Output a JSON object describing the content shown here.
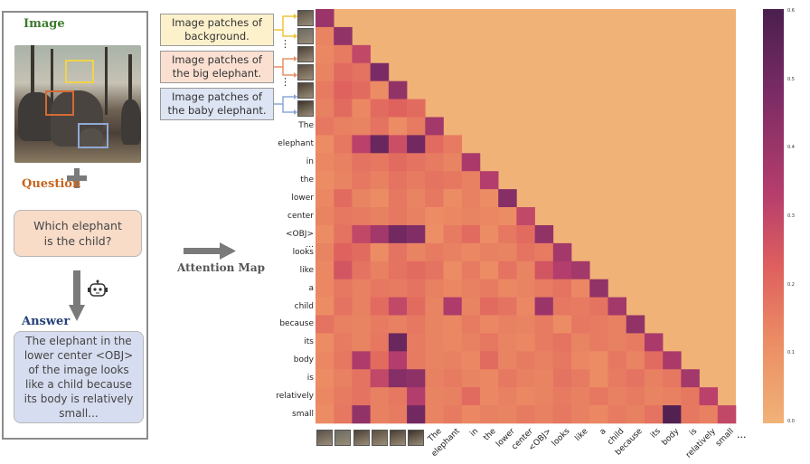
{
  "left_panel": {
    "image_title": "Image",
    "question_title": "Question",
    "question_text": "Which elephant is the child?",
    "answer_title": "Answer",
    "answer_text": "The elephant in the lower center <OBJ> of the image looks like a child because its body is relatively small...",
    "colors": {
      "image_title": "#3c7a2e",
      "question_title": "#c5651e",
      "answer_title": "#27427a",
      "box_yellow": "#f1d34b",
      "box_orange": "#d36a33",
      "box_blue": "#8faad6"
    }
  },
  "middle": {
    "attention_label": "Attention Map",
    "legend": [
      {
        "text": "Image patches of background.",
        "bg": "#fdf1cc",
        "line": "#f0c43a"
      },
      {
        "text": "Image patches of the big elephant.",
        "bg": "#fbe0d2",
        "line": "#e89165"
      },
      {
        "text": "Image patches of the baby elephant.",
        "bg": "#dde4f3",
        "line": "#8ca7d8"
      }
    ],
    "ellipsis": "⋮"
  },
  "chart_data": {
    "type": "heatmap",
    "row_labels": [
      "",
      "",
      "",
      "",
      "",
      "",
      "The",
      "elephant",
      "in",
      "the",
      "lower",
      "center",
      "<OBJ>",
      "looks",
      "like",
      "a",
      "child",
      "because",
      "its",
      "body",
      "is",
      "relatively",
      "small"
    ],
    "col_labels": [
      "",
      "",
      "",
      "",
      "",
      "",
      "The",
      "elephant",
      "in",
      "the",
      "lower",
      "center",
      "<OBJ>",
      "looks",
      "like",
      "a",
      "child",
      "because",
      "its",
      "body",
      "is",
      "relatively",
      "small"
    ],
    "row_ellipsis": "...",
    "col_ellipsis": "...",
    "colorbar": {
      "min": 0.0,
      "max": 0.6,
      "ticks": [
        "0.6",
        "0.5",
        "0.4",
        "0.3",
        "0.2",
        "0.1",
        "0.0"
      ]
    },
    "values": [
      [
        0.4
      ],
      [
        0.14,
        0.42
      ],
      [
        0.13,
        0.16,
        0.3
      ],
      [
        0.14,
        0.2,
        0.18,
        0.48
      ],
      [
        0.16,
        0.22,
        0.2,
        0.12,
        0.42
      ],
      [
        0.15,
        0.2,
        0.13,
        0.2,
        0.22,
        0.2
      ],
      [
        0.17,
        0.15,
        0.14,
        0.18,
        0.12,
        0.16,
        0.38
      ],
      [
        0.12,
        0.17,
        0.32,
        0.52,
        0.28,
        0.5,
        0.2,
        0.16
      ],
      [
        0.13,
        0.15,
        0.18,
        0.17,
        0.2,
        0.18,
        0.16,
        0.14,
        0.36
      ],
      [
        0.12,
        0.14,
        0.17,
        0.15,
        0.18,
        0.16,
        0.18,
        0.17,
        0.15,
        0.34
      ],
      [
        0.13,
        0.2,
        0.14,
        0.12,
        0.17,
        0.14,
        0.17,
        0.12,
        0.15,
        0.12,
        0.45
      ],
      [
        0.14,
        0.17,
        0.16,
        0.15,
        0.17,
        0.15,
        0.12,
        0.13,
        0.14,
        0.13,
        0.12,
        0.3
      ],
      [
        0.12,
        0.18,
        0.3,
        0.38,
        0.5,
        0.46,
        0.11,
        0.16,
        0.2,
        0.12,
        0.17,
        0.2,
        0.42
      ],
      [
        0.14,
        0.22,
        0.2,
        0.12,
        0.18,
        0.14,
        0.16,
        0.15,
        0.13,
        0.15,
        0.14,
        0.18,
        0.16,
        0.38
      ],
      [
        0.13,
        0.26,
        0.18,
        0.15,
        0.18,
        0.2,
        0.18,
        0.12,
        0.16,
        0.12,
        0.18,
        0.14,
        0.26,
        0.34,
        0.38
      ],
      [
        0.13,
        0.17,
        0.15,
        0.17,
        0.16,
        0.18,
        0.15,
        0.13,
        0.15,
        0.16,
        0.13,
        0.14,
        0.16,
        0.18,
        0.13,
        0.42
      ],
      [
        0.12,
        0.18,
        0.15,
        0.2,
        0.3,
        0.2,
        0.14,
        0.35,
        0.14,
        0.2,
        0.18,
        0.13,
        0.4,
        0.17,
        0.16,
        0.18,
        0.38
      ],
      [
        0.18,
        0.15,
        0.14,
        0.16,
        0.15,
        0.17,
        0.14,
        0.13,
        0.16,
        0.13,
        0.15,
        0.14,
        0.16,
        0.12,
        0.17,
        0.16,
        0.15,
        0.42
      ],
      [
        0.12,
        0.16,
        0.14,
        0.17,
        0.52,
        0.16,
        0.14,
        0.13,
        0.15,
        0.17,
        0.14,
        0.13,
        0.16,
        0.18,
        0.14,
        0.16,
        0.15,
        0.16,
        0.36
      ],
      [
        0.13,
        0.17,
        0.35,
        0.2,
        0.34,
        0.16,
        0.14,
        0.15,
        0.13,
        0.2,
        0.14,
        0.16,
        0.15,
        0.17,
        0.13,
        0.12,
        0.17,
        0.14,
        0.2,
        0.36
      ],
      [
        0.12,
        0.15,
        0.18,
        0.3,
        0.45,
        0.43,
        0.15,
        0.16,
        0.14,
        0.13,
        0.17,
        0.15,
        0.14,
        0.18,
        0.16,
        0.12,
        0.16,
        0.18,
        0.15,
        0.17,
        0.38
      ],
      [
        0.13,
        0.16,
        0.18,
        0.15,
        0.17,
        0.34,
        0.14,
        0.15,
        0.2,
        0.13,
        0.15,
        0.13,
        0.14,
        0.16,
        0.15,
        0.17,
        0.15,
        0.16,
        0.14,
        0.15,
        0.17,
        0.32
      ],
      [
        0.12,
        0.17,
        0.42,
        0.15,
        0.16,
        0.5,
        0.14,
        0.16,
        0.13,
        0.15,
        0.14,
        0.16,
        0.15,
        0.17,
        0.15,
        0.13,
        0.16,
        0.15,
        0.18,
        0.58,
        0.17,
        0.15,
        0.3
      ]
    ]
  }
}
